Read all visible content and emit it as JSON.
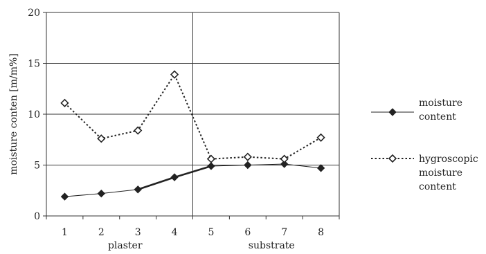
{
  "chart_data": {
    "type": "line",
    "x": [
      1,
      2,
      3,
      4,
      5,
      6,
      7,
      8
    ],
    "xticks": [
      "1",
      "2",
      "3",
      "4",
      "5",
      "6",
      "7",
      "8"
    ],
    "ylabel": "moisture conten [m/m%]",
    "ylim": [
      0,
      20
    ],
    "yticks": [
      "0",
      "5",
      "10",
      "15",
      "20"
    ],
    "grid": "horizontal",
    "divider_between_x": [
      4,
      5
    ],
    "group_labels": [
      "plaster",
      "substrate"
    ],
    "legend_position": "right",
    "series": [
      {
        "name_lines": [
          "moisture",
          "content"
        ],
        "values": [
          1.9,
          2.2,
          2.6,
          3.8,
          4.9,
          5.0,
          5.1,
          4.7
        ],
        "marker": "filled-diamond",
        "line": "solid",
        "color": "#222222"
      },
      {
        "name_lines": [
          "hygroscopic",
          "moisture",
          "content"
        ],
        "values": [
          11.1,
          7.6,
          8.4,
          13.9,
          5.6,
          5.8,
          5.6,
          7.7
        ],
        "marker": "open-diamond",
        "line": "dotted",
        "color": "#222222"
      }
    ]
  }
}
